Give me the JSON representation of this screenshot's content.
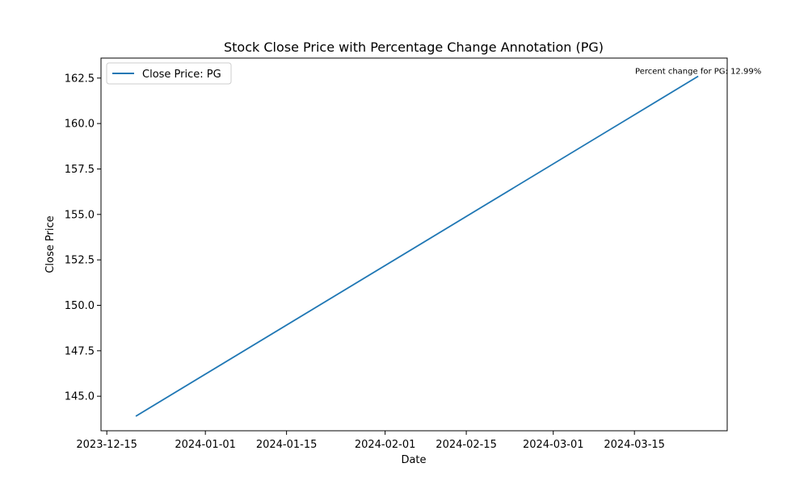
{
  "chart_data": {
    "type": "line",
    "title": "Stock Close Price with Percentage Change Annotation (PG)",
    "xlabel": "Date",
    "ylabel": "Close Price",
    "x_axis_type": "date",
    "xlim": [
      "2023-12-14",
      "2024-03-31"
    ],
    "ylim": [
      143.1,
      163.6
    ],
    "x_ticks": [
      "2023-12-15",
      "2024-01-01",
      "2024-01-15",
      "2024-02-01",
      "2024-02-15",
      "2024-03-01",
      "2024-03-15"
    ],
    "y_ticks": [
      145.0,
      147.5,
      150.0,
      152.5,
      155.0,
      157.5,
      160.0,
      162.5
    ],
    "y_tick_labels": [
      "145.0",
      "147.5",
      "150.0",
      "152.5",
      "155.0",
      "157.5",
      "160.0",
      "162.5"
    ],
    "series": [
      {
        "name": "Close Price: PG",
        "color": "#1f77b4",
        "x": [
          "2023-12-20",
          "2024-03-26"
        ],
        "y": [
          143.9,
          162.6
        ]
      }
    ],
    "legend": {
      "position": "top-left",
      "entries": [
        "Close Price: PG"
      ]
    },
    "annotations": [
      {
        "text": "Percent change for PG: 12.99%",
        "x": "2024-03-26",
        "y": 162.6
      }
    ],
    "grid": false
  }
}
